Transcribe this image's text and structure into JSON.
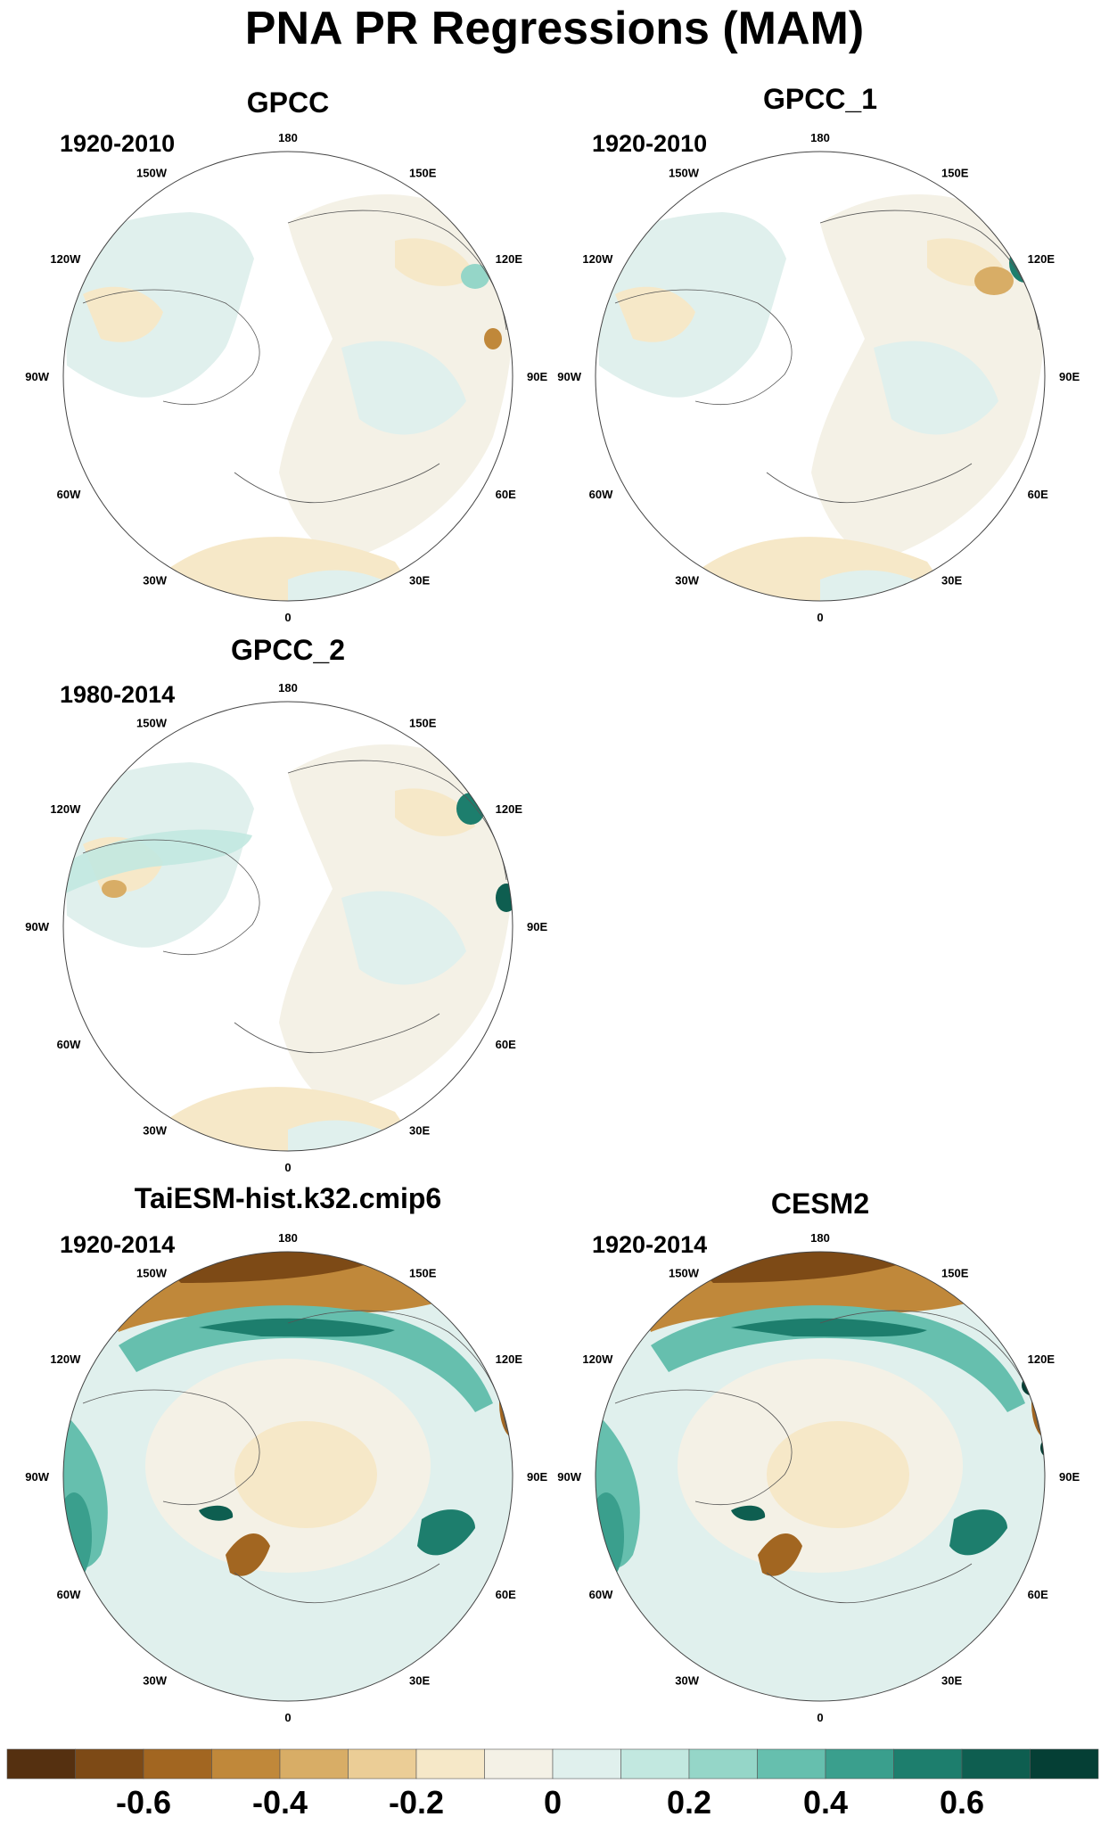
{
  "title": "PNA PR Regressions (MAM)",
  "lon_labels": [
    "180",
    "150E",
    "120E",
    "90E",
    "60E",
    "30E",
    "0",
    "30W",
    "60W",
    "90W",
    "120W",
    "150W"
  ],
  "panels": [
    {
      "id": "gpcc",
      "title": "GPCC",
      "period": "1920-2010",
      "kind": "obs"
    },
    {
      "id": "gpcc1",
      "title": "GPCC_1",
      "period": "1920-2010",
      "kind": "obs"
    },
    {
      "id": "gpcc2",
      "title": "GPCC_2",
      "period": "1980-2014",
      "kind": "obs"
    },
    {
      "id": "taiesm",
      "title": "TaiESM-hist.k32.cmip6",
      "period": "1920-2014",
      "kind": "model"
    },
    {
      "id": "cesm2",
      "title": "CESM2",
      "period": "1920-2014",
      "kind": "model"
    }
  ],
  "colorbar": {
    "colors": [
      "#553010",
      "#7d4a16",
      "#a26621",
      "#c0883a",
      "#d8ad66",
      "#ebcd96",
      "#f6e8c8",
      "#f4f1e6",
      "#e0f0ed",
      "#c2e8e0",
      "#95d6c8",
      "#66bfae",
      "#3a9f8d",
      "#1d7e6d",
      "#0e5e50",
      "#053f35"
    ],
    "tick_labels": [
      "-0.6",
      "-0.4",
      "-0.2",
      "0",
      "0.2",
      "0.4",
      "0.6"
    ]
  },
  "colors": {
    "land_neutral": "#f4f1e6",
    "land_wet_light": "#e0f0ed",
    "land_dry_light": "#f6e8c8",
    "coastline": "#555555"
  }
}
